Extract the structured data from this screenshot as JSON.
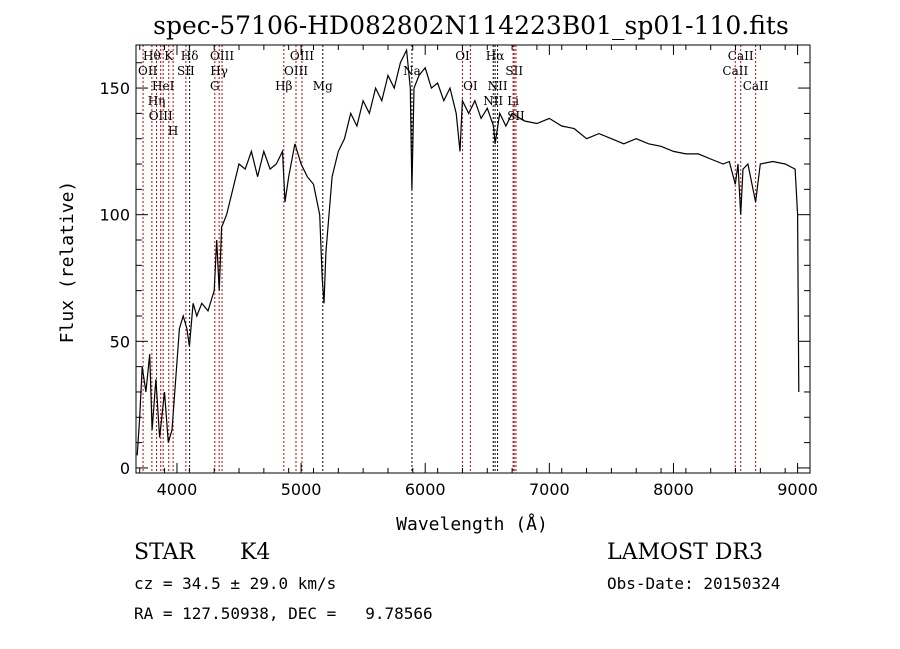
{
  "chart_data": {
    "type": "line",
    "title": "spec-57106-HD082802N114223B01_sp01-110.fits",
    "xlabel": "Wavelength (Å)",
    "ylabel": "Flux (relative)",
    "xlim": [
      3670,
      9100
    ],
    "ylim": [
      -2,
      167
    ],
    "xticks": [
      4000,
      5000,
      6000,
      7000,
      8000,
      9000
    ],
    "yticks": [
      0,
      50,
      100,
      150
    ],
    "grid": false,
    "series": [
      {
        "name": "spectrum",
        "x": [
          3680,
          3700,
          3720,
          3750,
          3780,
          3800,
          3830,
          3860,
          3900,
          3930,
          3960,
          3990,
          4020,
          4050,
          4080,
          4100,
          4130,
          4160,
          4200,
          4250,
          4300,
          4320,
          4340,
          4360,
          4400,
          4450,
          4500,
          4550,
          4600,
          4650,
          4700,
          4750,
          4800,
          4850,
          4870,
          4900,
          4950,
          5000,
          5050,
          5100,
          5150,
          5170,
          5185,
          5200,
          5250,
          5300,
          5350,
          5400,
          5450,
          5500,
          5550,
          5600,
          5650,
          5700,
          5750,
          5800,
          5850,
          5880,
          5893,
          5910,
          5950,
          6000,
          6050,
          6100,
          6150,
          6200,
          6250,
          6280,
          6300,
          6350,
          6400,
          6450,
          6500,
          6550,
          6563,
          6600,
          6650,
          6700,
          6800,
          6900,
          7000,
          7100,
          7200,
          7300,
          7400,
          7500,
          7600,
          7700,
          7800,
          7900,
          8000,
          8100,
          8200,
          8300,
          8400,
          8450,
          8498,
          8520,
          8542,
          8560,
          8600,
          8662,
          8700,
          8800,
          8900,
          8980,
          9000,
          9010
        ],
        "y": [
          5,
          20,
          40,
          30,
          45,
          15,
          35,
          12,
          30,
          10,
          15,
          35,
          55,
          60,
          55,
          48,
          65,
          60,
          65,
          62,
          70,
          90,
          70,
          95,
          100,
          110,
          120,
          118,
          125,
          115,
          125,
          118,
          120,
          125,
          105,
          115,
          128,
          120,
          115,
          112,
          100,
          75,
          65,
          85,
          115,
          125,
          130,
          140,
          135,
          145,
          140,
          150,
          145,
          155,
          150,
          160,
          165,
          150,
          110,
          150,
          155,
          158,
          150,
          152,
          145,
          150,
          140,
          125,
          145,
          140,
          145,
          138,
          142,
          135,
          128,
          140,
          135,
          140,
          137,
          136,
          138,
          135,
          134,
          130,
          132,
          130,
          128,
          130,
          128,
          127,
          125,
          124,
          124,
          122,
          120,
          121,
          112,
          120,
          100,
          118,
          120,
          105,
          120,
          121,
          120,
          118,
          100,
          30
        ]
      }
    ],
    "lines": [
      {
        "label": "Hθ",
        "wave": 3798,
        "row": 0,
        "color": "#c00000"
      },
      {
        "label": "K",
        "wave": 3934,
        "row": 0,
        "color": "#c00000"
      },
      {
        "label": "Hδ",
        "wave": 4102,
        "row": 0,
        "color": "#000000"
      },
      {
        "label": "OIII",
        "wave": 4363,
        "row": 0,
        "color": "#c00000"
      },
      {
        "label": "OIII",
        "wave": 5007,
        "row": 0,
        "color": "#c00000"
      },
      {
        "label": "OI",
        "wave": 6300,
        "row": 0,
        "color": "#c00000"
      },
      {
        "label": "Hα",
        "wave": 6563,
        "row": 0,
        "color": "#000000"
      },
      {
        "label": "SII",
        "wave": 6717,
        "row": 0,
        "color": "#c00000"
      },
      {
        "label": "CaII",
        "wave": 8542,
        "row": 0,
        "color": "#c00000"
      },
      {
        "label": "OII",
        "wave": 3727,
        "row": 1,
        "color": "#c00000"
      },
      {
        "label": "HeI",
        "wave": 3889,
        "row": 1,
        "color": "#c00000"
      },
      {
        "label": "SII",
        "wave": 4072,
        "row": 1,
        "color": "#c00000"
      },
      {
        "label": "Hγ",
        "wave": 4340,
        "row": 1,
        "color": "#c00000"
      },
      {
        "label": "OIII",
        "wave": 4959,
        "row": 1,
        "color": "#c00000"
      },
      {
        "label": "Na",
        "wave": 5893,
        "row": 1,
        "color": "#000000"
      },
      {
        "label": "NII",
        "wave": 6583,
        "row": 1,
        "color": "#000000"
      },
      {
        "label": "Li",
        "wave": 6708,
        "row": 1,
        "color": "#c00000"
      },
      {
        "label": "CaII",
        "wave": 8498,
        "row": 1,
        "color": "#c00000"
      },
      {
        "label": "OIII",
        "wave": 3869,
        "row": 2,
        "color": "#c00000"
      },
      {
        "label": "Hη",
        "wave": 3835,
        "row": 2,
        "color": "#c00000"
      },
      {
        "label": "H",
        "wave": 3969,
        "row": 2,
        "color": "#c00000"
      },
      {
        "label": "G",
        "wave": 4305,
        "row": 2,
        "color": "#c00000"
      },
      {
        "label": "Hβ",
        "wave": 4861,
        "row": 2,
        "color": "#c00000"
      },
      {
        "label": "Mg",
        "wave": 5175,
        "row": 2,
        "color": "#000000"
      },
      {
        "label": "OI",
        "wave": 6364,
        "row": 2,
        "color": "#c00000"
      },
      {
        "label": "NII",
        "wave": 6548,
        "row": 2,
        "color": "#000000"
      },
      {
        "label": "SII",
        "wave": 6731,
        "row": 2,
        "color": "#c00000"
      },
      {
        "label": "CaII",
        "wave": 8662,
        "row": 2,
        "color": "#c00000"
      }
    ]
  },
  "info": {
    "class": "STAR",
    "subclass": "K4",
    "survey": "LAMOST DR3",
    "cz": "cz = 34.5 ± 29.0 km/s",
    "obs_date": "Obs-Date: 20150324",
    "radec": "RA = 127.50938, DEC =   9.78566"
  }
}
